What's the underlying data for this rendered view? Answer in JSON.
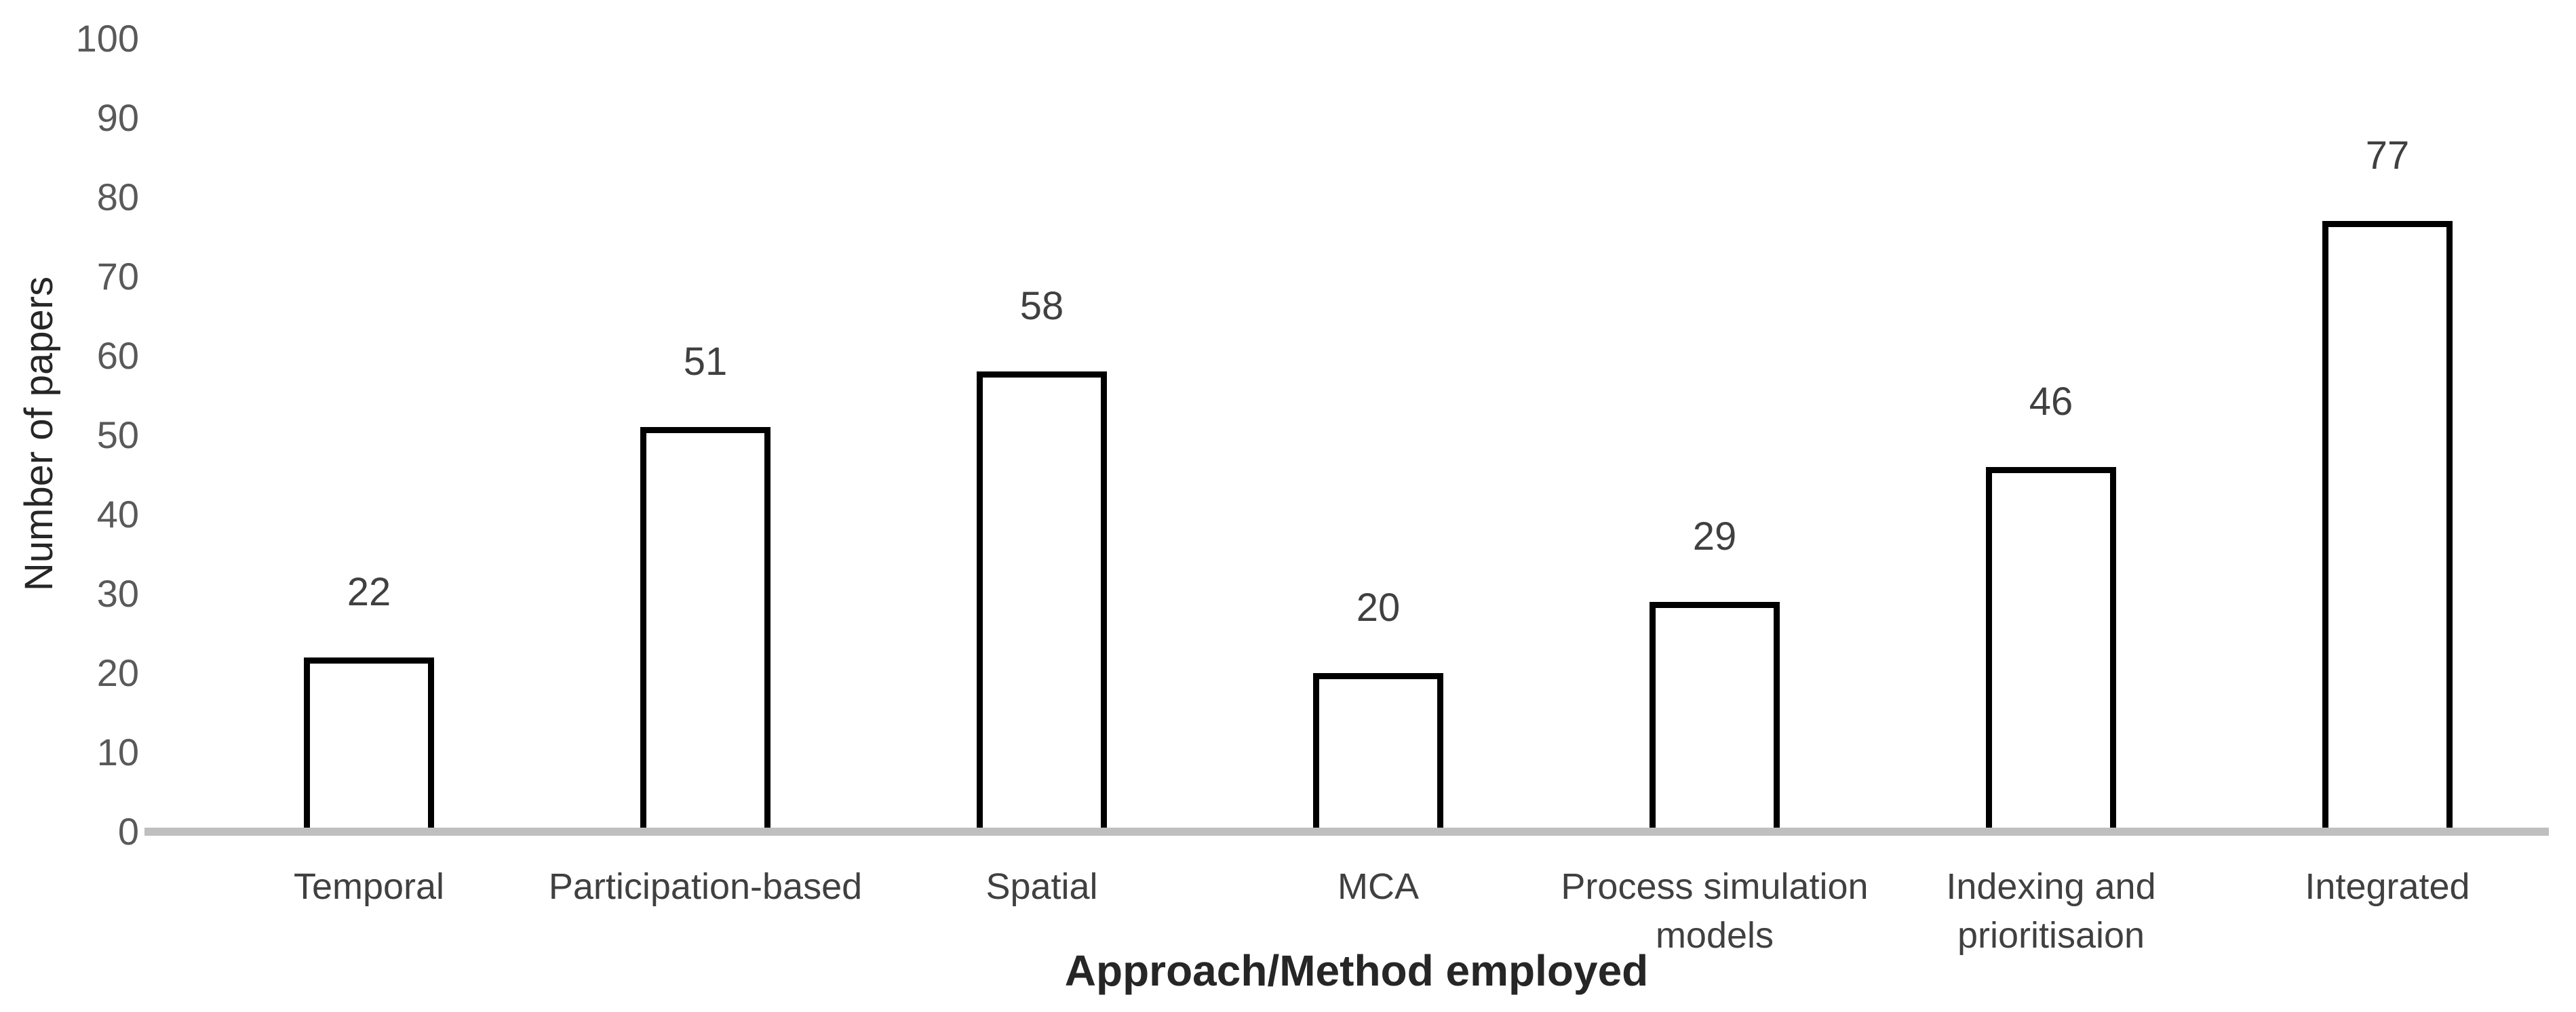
{
  "chart_data": {
    "type": "bar",
    "title": "",
    "categories": [
      "Temporal",
      "Participation-based",
      "Spatial",
      "MCA",
      "Process simulation\nmodels",
      "Indexing and\nprioritisaion",
      "Integrated"
    ],
    "values": [
      22,
      51,
      58,
      20,
      29,
      46,
      77
    ],
    "data_labels": [
      "22",
      "51",
      "58",
      "20",
      "29",
      "46",
      "77"
    ],
    "xlabel": "Approach/Method employed",
    "ylabel": "Number of papers",
    "ylim": [
      0,
      100
    ],
    "yticks": [
      0,
      10,
      20,
      30,
      40,
      50,
      60,
      70,
      80,
      90,
      100
    ],
    "grid": false,
    "legend": false,
    "bar_fill_color": "#ffffff",
    "bar_border_color": "#000000",
    "axis_line_color": "#bfbfbf",
    "tick_label_color": "#595959",
    "data_label_color": "#404040",
    "category_label_color": "#404040",
    "axis_title_color": "#262626"
  }
}
